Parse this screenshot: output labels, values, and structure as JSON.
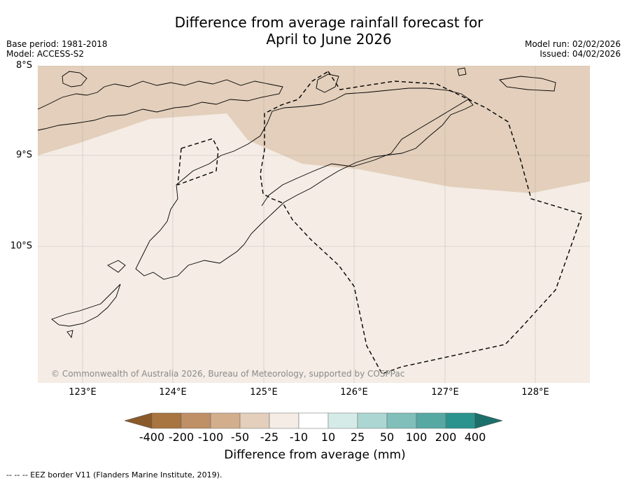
{
  "title_line1": "Difference from average rainfall forecast for",
  "title_line2": "April to June 2026",
  "base_period": "Base period: 1981-2018",
  "model": "Model: ACCESS-S2",
  "model_run": "Model run: 02/02/2026",
  "issued": "Issued: 04/02/2026",
  "lat_labels": [
    "8°S",
    "9°S",
    "10°S"
  ],
  "lon_labels": [
    "123°E",
    "124°E",
    "125°E",
    "126°E",
    "127°E",
    "128°E"
  ],
  "copyright": "© Commonwealth of Australia 2026, Bureau of Meteorology, supported by COSPPac",
  "colorbar": {
    "label": "Difference from average (mm)",
    "ticks": [
      "-400",
      "-200",
      "-100",
      "-50",
      "-25",
      "-10",
      "10",
      "25",
      "50",
      "100",
      "200",
      "400"
    ],
    "colors": [
      "#8b5a2b",
      "#a8743f",
      "#bf8f66",
      "#d2ae8d",
      "#e3cfbb",
      "#f4ece5",
      "#ffffff",
      "#d5ebe8",
      "#acd6d2",
      "#80bfba",
      "#56a8a3",
      "#2a938e",
      "#1d6f6b"
    ]
  },
  "footnote": "-- -- -- EEZ border V11 (Flanders Marine Institute, 2019).",
  "icons": {
    "map": "map-icon"
  }
}
